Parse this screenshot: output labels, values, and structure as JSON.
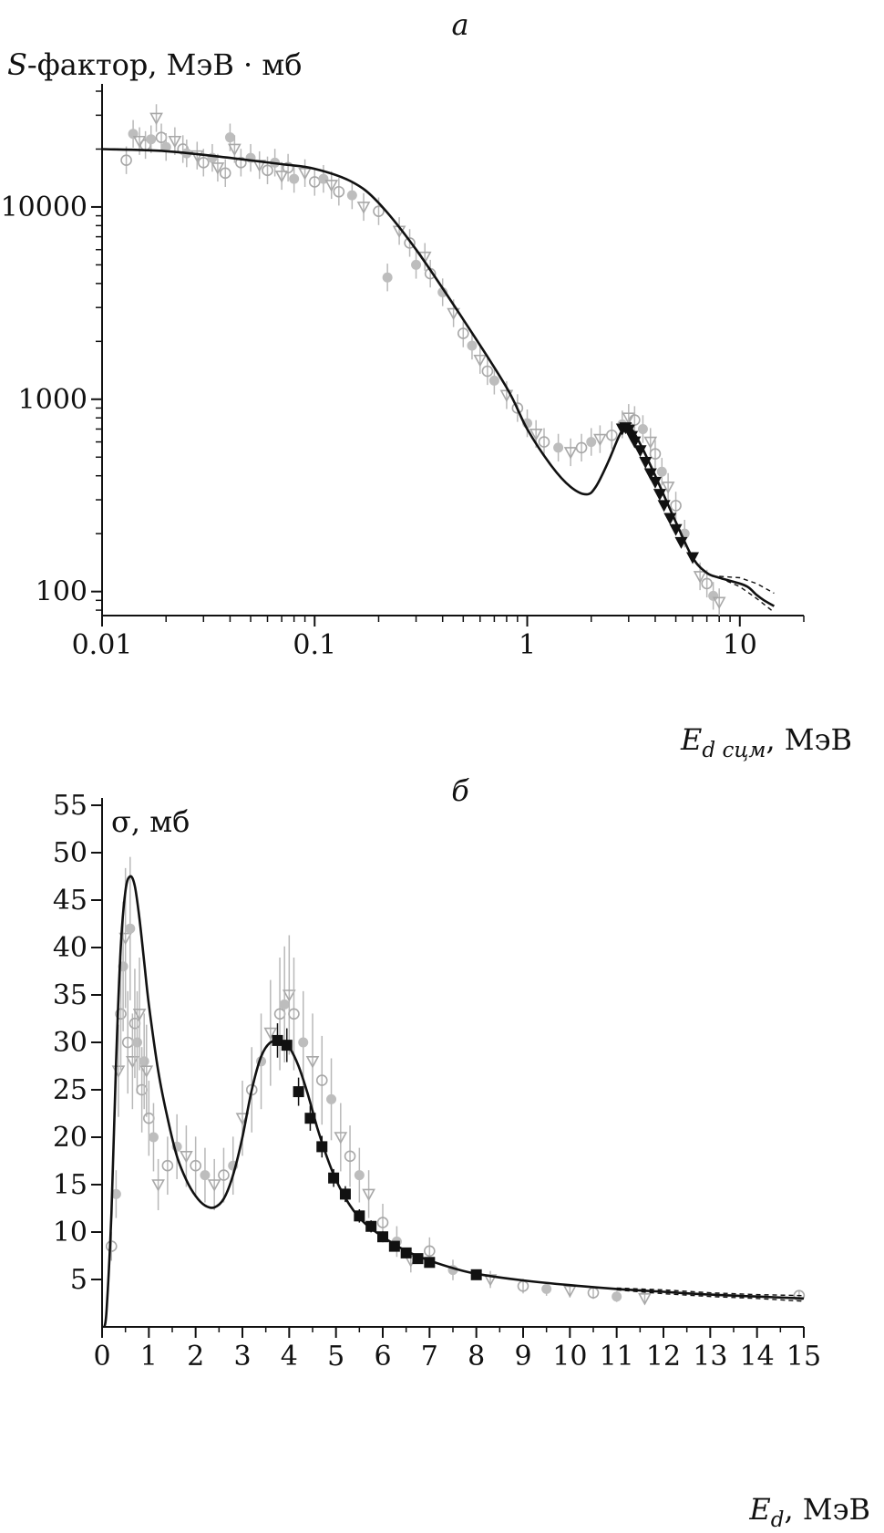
{
  "chart_data": [
    {
      "panel_label": "а",
      "type": "scatter",
      "ylabel": {
        "prefix": "S",
        "text": "-фактор, МэВ · мб"
      },
      "xlabel": {
        "sym": "E",
        "sub": "d сцм",
        "unit": ", МэВ"
      },
      "x_scale": "log",
      "y_scale": "log",
      "xlim": [
        0.01,
        20
      ],
      "ylim": [
        75,
        40000
      ],
      "xticks": [
        {
          "v": 0.01,
          "label": "0.01"
        },
        {
          "v": 0.1,
          "label": "0.1"
        },
        {
          "v": 1,
          "label": "1"
        },
        {
          "v": 10,
          "label": "10"
        }
      ],
      "yticks": [
        {
          "v": 100,
          "label": "100"
        },
        {
          "v": 1000,
          "label": "1000"
        },
        {
          "v": 10000,
          "label": "10000"
        }
      ],
      "grid": false,
      "curve": {
        "x": [
          0.01,
          0.02,
          0.04,
          0.07,
          0.1,
          0.15,
          0.2,
          0.3,
          0.5,
          0.8,
          1.0,
          1.3,
          1.6,
          1.9,
          2.1,
          2.4,
          2.7,
          2.9,
          3.1,
          3.5,
          4.0,
          5.0,
          6.0,
          7.0,
          8.0,
          10.0,
          11.0,
          12.0,
          13.0,
          14.5
        ],
        "y": [
          20000,
          19500,
          18000,
          16700,
          15800,
          13500,
          10500,
          6000,
          2600,
          1150,
          700,
          450,
          350,
          320,
          350,
          470,
          640,
          720,
          700,
          550,
          400,
          230,
          150,
          125,
          118,
          110,
          105,
          96,
          90,
          84
        ]
      },
      "band": {
        "x": [
          8,
          10,
          12,
          14.5
        ],
        "upper": [
          120,
          118,
          110,
          98
        ],
        "lower": [
          118,
          106,
          92,
          78
        ]
      },
      "data_filled": {
        "x": [
          2.8,
          2.9,
          3.0,
          3.1,
          3.2,
          3.4,
          3.6,
          3.8,
          4.0,
          4.2,
          4.4,
          4.7,
          5.0,
          5.3,
          6.0
        ],
        "y": [
          700,
          710,
          690,
          640,
          600,
          540,
          470,
          410,
          370,
          320,
          280,
          240,
          210,
          180,
          150
        ]
      },
      "data_gray": {
        "x": [
          0.013,
          0.014,
          0.015,
          0.016,
          0.017,
          0.018,
          0.019,
          0.02,
          0.022,
          0.024,
          0.025,
          0.028,
          0.03,
          0.033,
          0.035,
          0.038,
          0.04,
          0.042,
          0.045,
          0.05,
          0.055,
          0.06,
          0.065,
          0.07,
          0.075,
          0.08,
          0.09,
          0.1,
          0.11,
          0.12,
          0.13,
          0.15,
          0.17,
          0.2,
          0.22,
          0.25,
          0.28,
          0.3,
          0.33,
          0.35,
          0.4,
          0.45,
          0.5,
          0.55,
          0.6,
          0.65,
          0.7,
          0.8,
          0.9,
          1.0,
          1.1,
          1.2,
          1.4,
          1.6,
          1.8,
          2.0,
          2.2,
          2.5,
          2.8,
          3.0,
          3.2,
          3.5,
          3.8,
          4.0,
          4.3,
          4.6,
          5.0,
          5.5,
          6.5,
          7.0,
          7.5,
          8.0
        ],
        "y": [
          17500,
          24000,
          22000,
          21000,
          22500,
          29000,
          23000,
          20500,
          22000,
          20000,
          19000,
          18500,
          17000,
          18000,
          16000,
          15000,
          23000,
          20000,
          17000,
          18000,
          16500,
          15500,
          17000,
          14500,
          16000,
          14000,
          15000,
          13500,
          14000,
          13000,
          12000,
          11500,
          10000,
          9500,
          4300,
          7500,
          6500,
          5000,
          5500,
          4500,
          3600,
          2800,
          2200,
          1900,
          1600,
          1400,
          1250,
          1050,
          900,
          750,
          660,
          600,
          560,
          530,
          560,
          600,
          620,
          650,
          740,
          800,
          780,
          700,
          600,
          520,
          420,
          350,
          280,
          200,
          120,
          110,
          95,
          88
        ]
      }
    },
    {
      "panel_label": "б",
      "type": "scatter",
      "ylabel": "σ, мб",
      "xlabel": {
        "sym": "E",
        "sub": "d",
        "unit": ", МэВ"
      },
      "xlim": [
        0,
        15
      ],
      "ylim": [
        0,
        55
      ],
      "xticks": [
        {
          "v": 0,
          "label": "0"
        },
        {
          "v": 1,
          "label": "1"
        },
        {
          "v": 2,
          "label": "2"
        },
        {
          "v": 3,
          "label": "3"
        },
        {
          "v": 4,
          "label": "4"
        },
        {
          "v": 5,
          "label": "5"
        },
        {
          "v": 6,
          "label": "6"
        },
        {
          "v": 7,
          "label": "7"
        },
        {
          "v": 8,
          "label": "8"
        },
        {
          "v": 9,
          "label": "9"
        },
        {
          "v": 10,
          "label": "10"
        },
        {
          "v": 11,
          "label": "11"
        },
        {
          "v": 12,
          "label": "12"
        },
        {
          "v": 13,
          "label": "13"
        },
        {
          "v": 14,
          "label": "14"
        },
        {
          "v": 15,
          "label": "15"
        }
      ],
      "yticks": [
        {
          "v": 5,
          "label": "5"
        },
        {
          "v": 10,
          "label": "10"
        },
        {
          "v": 15,
          "label": "15"
        },
        {
          "v": 20,
          "label": "20"
        },
        {
          "v": 25,
          "label": "25"
        },
        {
          "v": 30,
          "label": "30"
        },
        {
          "v": 35,
          "label": "35"
        },
        {
          "v": 40,
          "label": "40"
        },
        {
          "v": 45,
          "label": "45"
        },
        {
          "v": 50,
          "label": "50"
        },
        {
          "v": 55,
          "label": "55"
        }
      ],
      "grid": false,
      "curve": {
        "x": [
          0.05,
          0.1,
          0.2,
          0.3,
          0.4,
          0.5,
          0.6,
          0.7,
          0.8,
          0.9,
          1.0,
          1.2,
          1.4,
          1.6,
          1.8,
          2.0,
          2.2,
          2.4,
          2.6,
          2.8,
          3.0,
          3.2,
          3.4,
          3.6,
          3.8,
          3.9,
          4.0,
          4.2,
          4.4,
          4.6,
          4.8,
          5.0,
          5.3,
          5.6,
          6.0,
          6.5,
          7.0,
          7.5,
          8.0,
          9.0,
          10.0,
          11.0,
          12.0,
          13.0,
          14.0,
          15.0
        ],
        "y": [
          0,
          2,
          12,
          28,
          40,
          46,
          47.5,
          46.5,
          43,
          38.5,
          34,
          27,
          22,
          18,
          15.5,
          13.8,
          12.8,
          12.6,
          13.5,
          16,
          20,
          25,
          28.5,
          30,
          30,
          29.8,
          29.5,
          27.5,
          24.5,
          21,
          18,
          15.5,
          12.8,
          11,
          9.5,
          8,
          7,
          6.2,
          5.6,
          4.9,
          4.4,
          4.0,
          3.7,
          3.4,
          3.2,
          3.0
        ]
      },
      "band": {
        "x": [
          11,
          12,
          13,
          14,
          15
        ],
        "upper": [
          4.1,
          3.9,
          3.6,
          3.4,
          3.3
        ],
        "lower": [
          3.9,
          3.5,
          3.2,
          3.0,
          2.7
        ]
      },
      "data_filled": {
        "x": [
          3.75,
          3.95,
          4.2,
          4.45,
          4.7,
          4.95,
          5.2,
          5.5,
          5.75,
          6.0,
          6.25,
          6.5,
          6.75,
          7.0,
          8.0
        ],
        "y": [
          30.2,
          29.7,
          24.8,
          22.0,
          19.0,
          15.7,
          14.0,
          11.7,
          10.6,
          9.5,
          8.5,
          7.8,
          7.2,
          6.8,
          5.5
        ]
      },
      "data_gray": {
        "x": [
          0.2,
          0.3,
          0.35,
          0.4,
          0.45,
          0.5,
          0.55,
          0.6,
          0.65,
          0.7,
          0.75,
          0.8,
          0.85,
          0.9,
          0.95,
          1.0,
          1.1,
          1.2,
          1.4,
          1.6,
          1.8,
          2.0,
          2.2,
          2.4,
          2.6,
          2.8,
          3.0,
          3.2,
          3.4,
          3.6,
          3.8,
          3.9,
          4.0,
          4.1,
          4.3,
          4.5,
          4.7,
          4.9,
          5.1,
          5.3,
          5.5,
          5.7,
          6.0,
          6.3,
          6.6,
          7.0,
          7.5,
          8.3,
          9.0,
          9.5,
          10.0,
          10.5,
          11.0,
          11.6,
          14.9
        ],
        "y": [
          8.5,
          14,
          27,
          33,
          38,
          41,
          30,
          42,
          28,
          32,
          30,
          33,
          25,
          28,
          27,
          22,
          20,
          15,
          17,
          19,
          18,
          17,
          16,
          15,
          16,
          17,
          22,
          25,
          28,
          31,
          33,
          34,
          35,
          33,
          30,
          28,
          26,
          24,
          20,
          18,
          16,
          14,
          11,
          9,
          7,
          8,
          6,
          5,
          4.3,
          4,
          3.8,
          3.6,
          3.2,
          3,
          3.3
        ]
      }
    }
  ]
}
